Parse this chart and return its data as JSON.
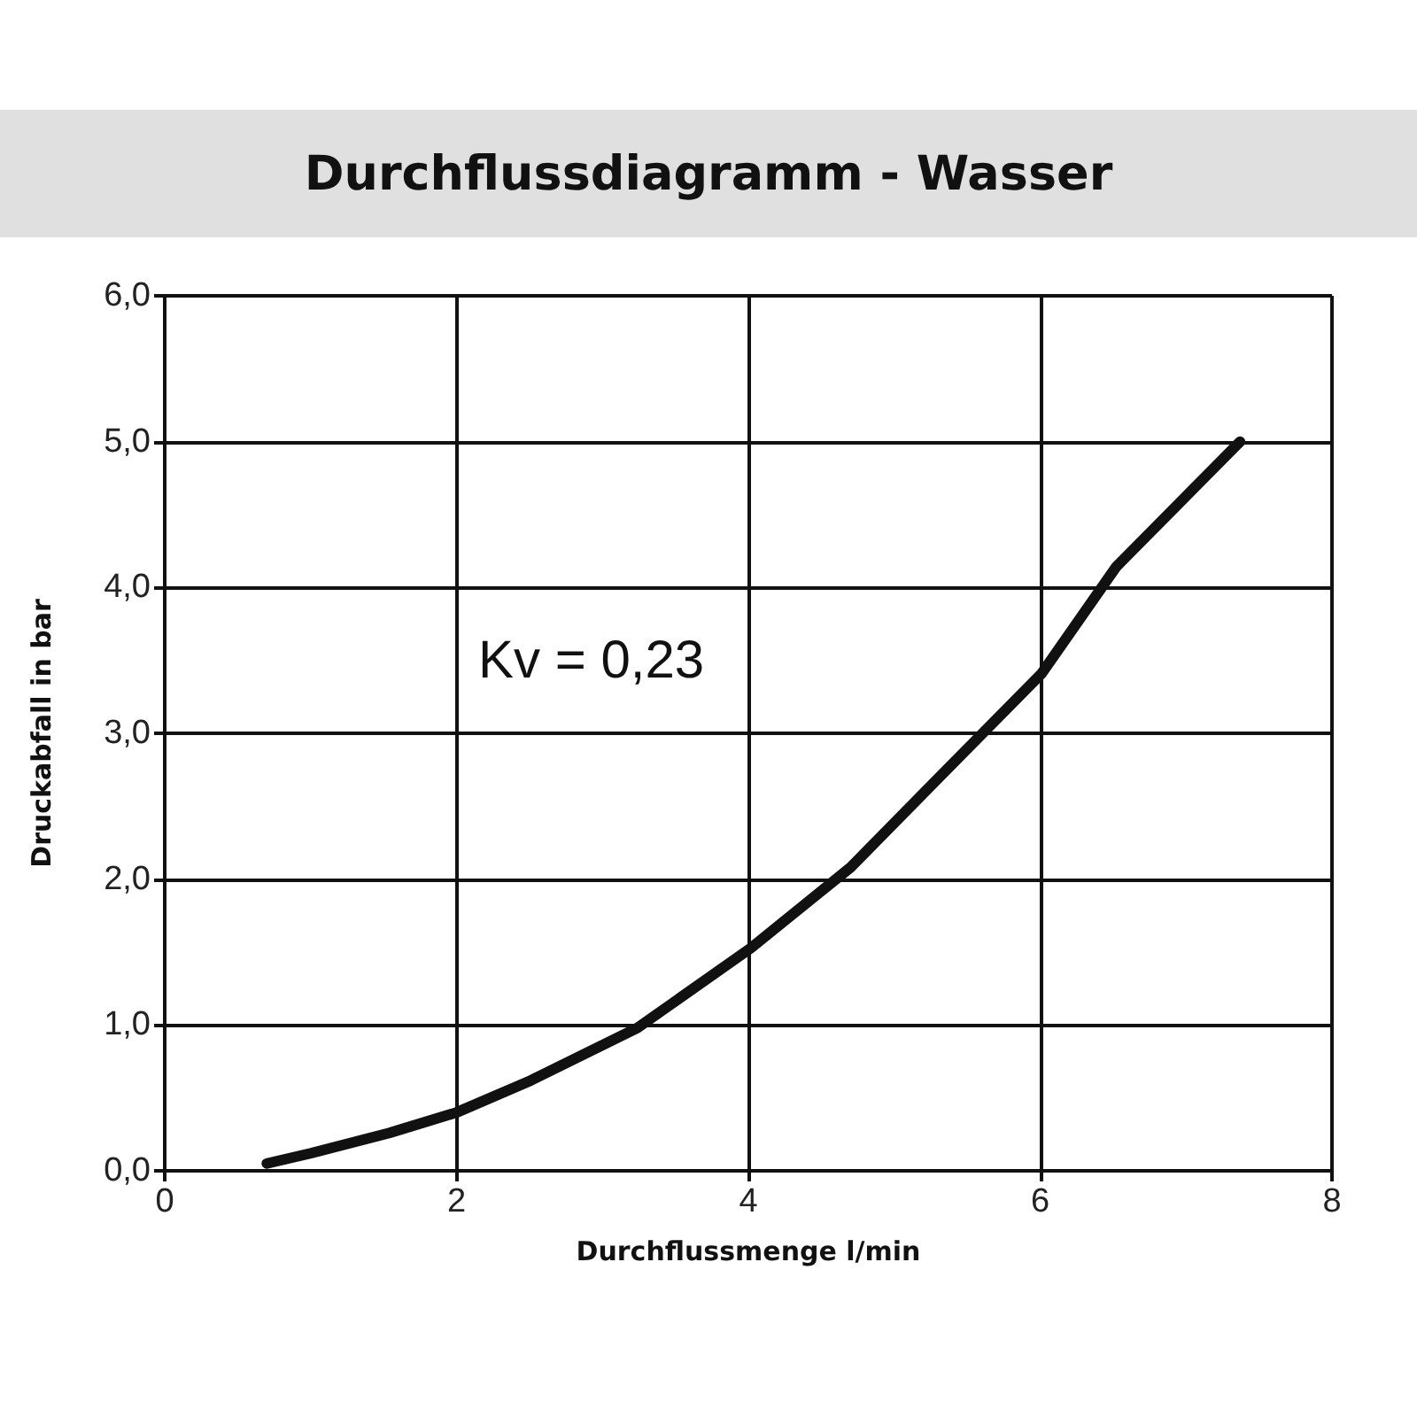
{
  "chart_data": {
    "type": "line",
    "title": "Durchflussdiagramm - Wasser",
    "xlabel": "Durchflussmenge l/min",
    "ylabel": "Druckabfall in bar",
    "annotations": [
      "Kv = 0,23"
    ],
    "x": [
      0.7,
      1.0,
      1.54,
      2.0,
      2.51,
      3.24,
      4.02,
      4.7,
      5.3,
      6.01,
      6.52,
      7.37
    ],
    "series": [
      {
        "color": "#111111",
        "values": [
          0.05,
          0.12,
          0.26,
          0.4,
          0.62,
          0.98,
          1.53,
          2.08,
          2.69,
          3.41,
          4.14,
          5.0
        ]
      }
    ],
    "xlim": [
      0,
      8
    ],
    "xticks": [
      0,
      2,
      4,
      6,
      8
    ],
    "ylim": [
      0,
      6
    ],
    "yticks": [
      {
        "value": 0,
        "label": "0,0"
      },
      {
        "value": 1,
        "label": "1,0"
      },
      {
        "value": 2,
        "label": "2,0"
      },
      {
        "value": 3,
        "label": "3,0"
      },
      {
        "value": 4,
        "label": "4,0"
      },
      {
        "value": 5,
        "label": "5,0"
      },
      {
        "value": 6,
        "label": "6,0"
      }
    ],
    "grid": true,
    "marker": "none",
    "line_style": "solid"
  }
}
